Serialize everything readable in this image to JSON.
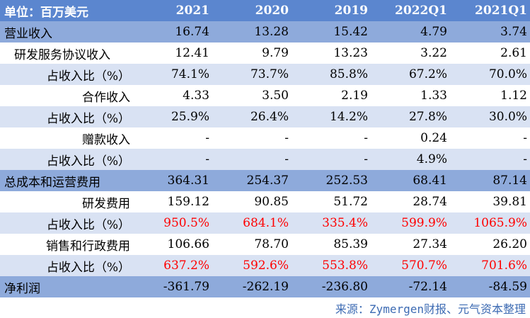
{
  "header": {
    "unit": "单位：百万美元",
    "cols": [
      "2021",
      "2020",
      "2019",
      "2022Q1",
      "2021Q1"
    ]
  },
  "rows": [
    {
      "label": "营业收入",
      "values": [
        "16.74",
        "13.28",
        "15.42",
        "4.79",
        "3.74"
      ]
    },
    {
      "label": "研发服务协议收入",
      "values": [
        "12.41",
        "9.79",
        "13.23",
        "3.22",
        "2.61"
      ]
    },
    {
      "label": "占收入比（%）",
      "values": [
        "74.1%",
        "73.7%",
        "85.8%",
        "67.2%",
        "70.0%"
      ]
    },
    {
      "label": "合作收入",
      "values": [
        "4.33",
        "3.50",
        "2.19",
        "1.33",
        "1.12"
      ]
    },
    {
      "label": "占收入比（%）",
      "values": [
        "25.9%",
        "26.4%",
        "14.2%",
        "27.8%",
        "30.0%"
      ]
    },
    {
      "label": "赠款收入",
      "values": [
        "-",
        "-",
        "-",
        "0.24",
        "-"
      ]
    },
    {
      "label": "占收入比（%）",
      "values": [
        "-",
        "-",
        "-",
        "4.9%",
        "-"
      ]
    },
    {
      "label": "总成本和运营费用",
      "values": [
        "364.31",
        "254.37",
        "252.53",
        "68.41",
        "87.14"
      ]
    },
    {
      "label": "研发费用",
      "values": [
        "159.12",
        "90.85",
        "51.72",
        "28.74",
        "39.81"
      ]
    },
    {
      "label": "占收入比（%）",
      "values": [
        "950.5%",
        "684.1%",
        "335.4%",
        "599.9%",
        "1065.9%"
      ]
    },
    {
      "label": "销售和行政费用",
      "values": [
        "106.66",
        "78.70",
        "85.39",
        "27.34",
        "26.20"
      ]
    },
    {
      "label": "占收入比（%）",
      "values": [
        "637.2%",
        "592.6%",
        "553.8%",
        "570.7%",
        "701.6%"
      ]
    },
    {
      "label": "净利润",
      "values": [
        "-361.79",
        "-262.19",
        "-236.80",
        "-72.14",
        "-84.59"
      ]
    }
  ],
  "source": "来源：Zymergen财报、元气资本整理",
  "colors": {
    "header_bg": "#5b86cf",
    "major_bg": "#8eaadb",
    "band_bg": "#d9e2f3",
    "highlight_text": "#ff0000",
    "source_text": "#3d6bb3"
  }
}
